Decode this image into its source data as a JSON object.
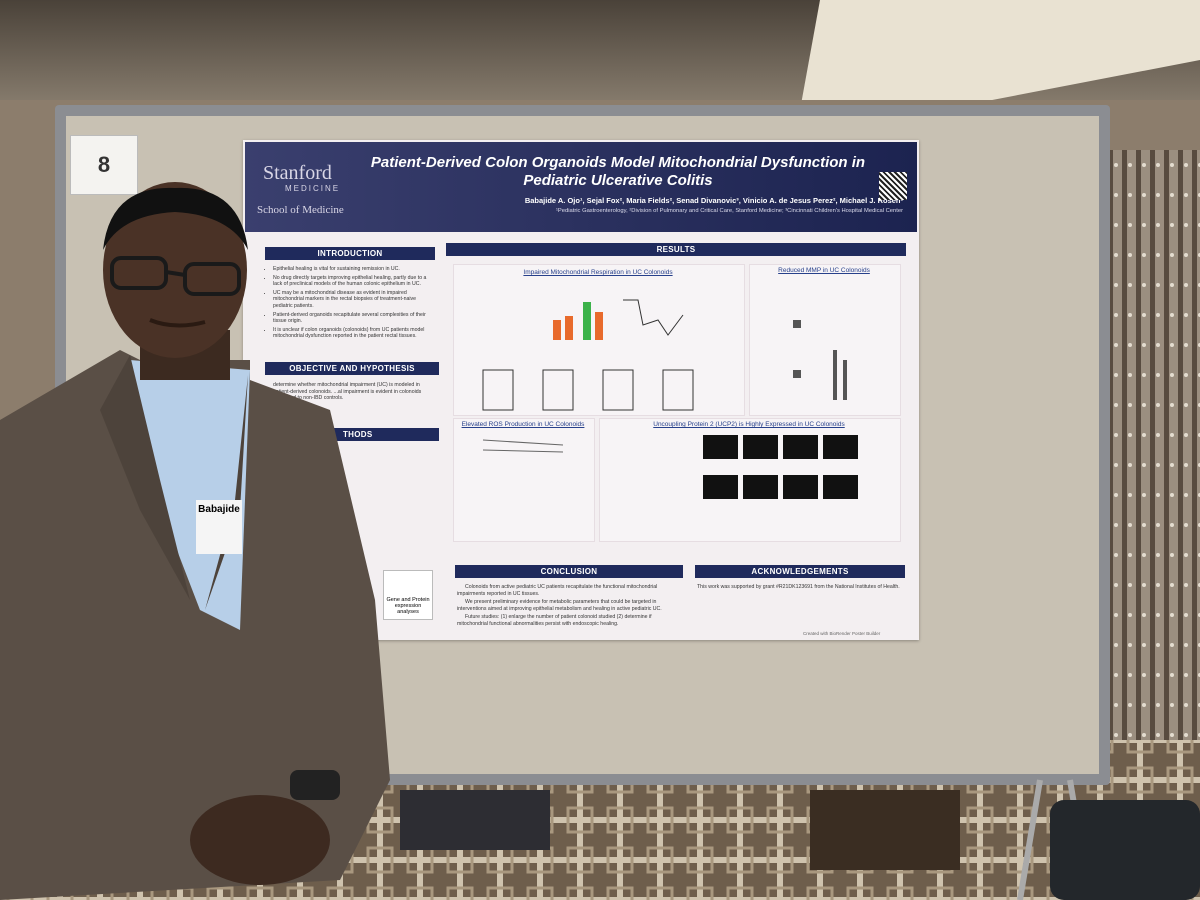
{
  "board_number": "8",
  "poster": {
    "title": "Patient-Derived Colon Organoids Model Mitochondrial Dysfunction in Pediatric Ulcerative Colitis",
    "authors": "Babajide A. Ojo¹, Sejal Fox², Maria Fields², Senad Divanovic³, Vinicio A. de Jesus Perez², Michael J. Rosen¹",
    "affiliations": "¹Pediatric Gastroenterology, ²Division of Pulmonary and Critical Care, Stanford Medicine; ³Cincinnati Children's Hospital Medical Center",
    "logo": {
      "brand": "Stanford",
      "sub": "MEDICINE",
      "school": "School of Medicine"
    },
    "introduction": {
      "heading": "INTRODUCTION",
      "bullets": [
        "Epithelial healing is vital for sustaining remission in UC.",
        "No drug directly targets improving epithelial healing, partly due to a lack of preclinical models of the human colonic epithelium in UC.",
        "UC may be a mitochondrial disease as evident in impaired mitochondrial markers in the rectal biopsies of treatment-naive pediatric patients.",
        "Patient-derived organoids recapitulate several complexities of their tissue origin.",
        "It is unclear if colon organoids (colonoids) from UC patients model mitochondrial dysfunction reported in the patient rectal tissues."
      ]
    },
    "objective": {
      "heading": "OBJECTIVE AND HYPOTHESIS",
      "text": "determine whether mitochondrial impairment (UC) is modeled in patient-derived colonoids. ...al impairment is evident in colonoids compared to non-IBD controls."
    },
    "methods": {
      "heading": "THODS",
      "box": "Gene and Protein expression analyses"
    },
    "results": {
      "heading": "RESULTS",
      "panels": [
        "Impaired Mitochondrial Respiration in UC Colonoids",
        "Reduced MMP in UC Colonoids",
        "Elevated ROS Production in UC Colonoids",
        "Uncoupling Protein 2 (UCP2) is Highly Expressed in UC Colonoids"
      ]
    },
    "conclusion": {
      "heading": "CONCLUSION",
      "paragraphs": [
        "Colonoids from active pediatric UC patients recapitulate the functional mitochondrial impairments reported in UC tissues.",
        "We present preliminary evidence for metabolic parameters that could be targeted in interventions aimed at improving epithelial metabolism and healing in active pediatric UC.",
        "Future studies: (1) enlarge the number of patient colonoid studied (2) determine if mitochondrial functional abnormalities persist with endoscopic healing."
      ]
    },
    "acknowledgements": {
      "heading": "ACKNOWLEDGEMENTS",
      "text": "This work was supported by grant #R21DK123691 from the National Institutes of Health."
    },
    "footer": "Created with BioRender Poster Builder"
  },
  "name_tag": "Babajide"
}
